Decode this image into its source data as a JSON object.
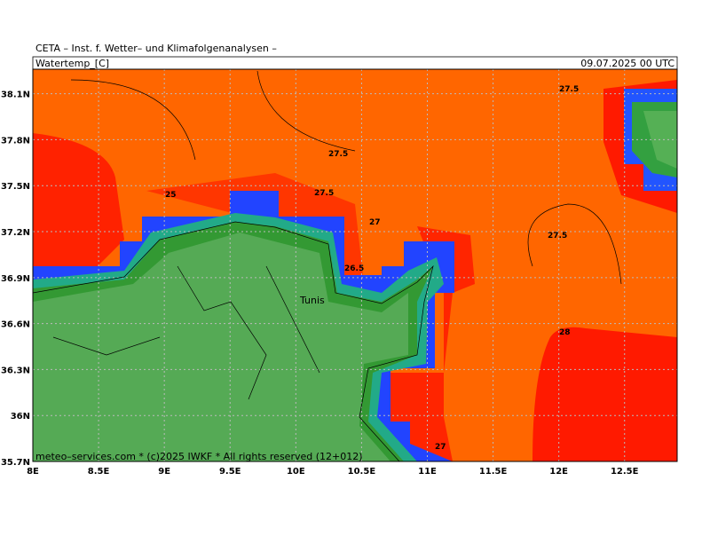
{
  "header": {
    "title": "CETA – Inst. f. Wetter– und Klimafolgenanalysen –",
    "variable": "Watertemp_[C]",
    "valid_time": "09.07.2025 00 UTC"
  },
  "map": {
    "lon_ticks": [
      {
        "value": 8,
        "label": "8E"
      },
      {
        "value": 8.5,
        "label": "8.5E"
      },
      {
        "value": 9,
        "label": "9E"
      },
      {
        "value": 9.5,
        "label": "9.5E"
      },
      {
        "value": 10,
        "label": "10E"
      },
      {
        "value": 10.5,
        "label": "10.5E"
      },
      {
        "value": 11,
        "label": "11E"
      },
      {
        "value": 11.5,
        "label": "11.5E"
      },
      {
        "value": 12,
        "label": "12E"
      },
      {
        "value": 12.5,
        "label": "12.5E"
      }
    ],
    "lat_ticks": [
      {
        "value": 38.1,
        "label": "38.1N"
      },
      {
        "value": 37.8,
        "label": "37.8N"
      },
      {
        "value": 37.5,
        "label": "37.5N"
      },
      {
        "value": 37.2,
        "label": "37.2N"
      },
      {
        "value": 36.9,
        "label": "36.9N"
      },
      {
        "value": 36.6,
        "label": "36.6N"
      },
      {
        "value": 36.3,
        "label": "36.3N"
      },
      {
        "value": 36,
        "label": "36N"
      },
      {
        "value": 35.7,
        "label": "35.7N"
      }
    ],
    "lon_range": [
      8,
      12.9
    ],
    "lat_range": [
      35.7,
      38.26
    ],
    "contour_labels": [
      "27.5",
      "27.5",
      "27.5",
      "27.5",
      "25",
      "27",
      "26.5",
      "28",
      "27"
    ],
    "city": "Tunis",
    "footer": "meteo–services.com * (c)2025 IWKF * All rights reserved (12+012)"
  }
}
